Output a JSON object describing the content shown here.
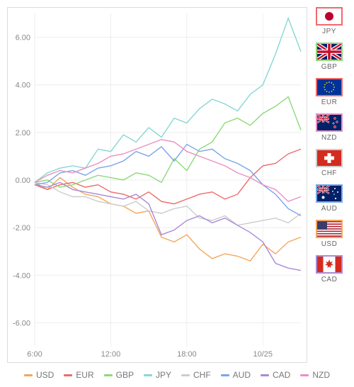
{
  "chart": {
    "type": "line",
    "background_color": "#ffffff",
    "grid_color": "#eeeeee",
    "border_color": "#dddddd",
    "axis_text_color": "#888888",
    "ylim": [
      -7,
      7
    ],
    "yticks": [
      -6,
      -4,
      -2,
      0,
      2,
      4,
      6
    ],
    "x_domain": [
      6,
      27
    ],
    "xticks": [
      {
        "value": 6,
        "label": "6:00"
      },
      {
        "value": 12,
        "label": "12:00"
      },
      {
        "value": 18,
        "label": "18:00"
      },
      {
        "value": 24,
        "label": "10/25"
      }
    ],
    "series": [
      {
        "id": "USD",
        "label": "USD",
        "color": "#f5a65b",
        "points": [
          [
            6,
            -0.1
          ],
          [
            7,
            -0.4
          ],
          [
            8,
            0.1
          ],
          [
            9,
            -0.3
          ],
          [
            10,
            -0.6
          ],
          [
            11,
            -0.7
          ],
          [
            12,
            -1.0
          ],
          [
            13,
            -1.1
          ],
          [
            14,
            -1.4
          ],
          [
            15,
            -1.3
          ],
          [
            16,
            -2.4
          ],
          [
            17,
            -2.6
          ],
          [
            18,
            -2.3
          ],
          [
            19,
            -2.9
          ],
          [
            20,
            -3.3
          ],
          [
            21,
            -3.1
          ],
          [
            22,
            -3.2
          ],
          [
            23,
            -3.4
          ],
          [
            24,
            -2.7
          ],
          [
            25,
            -3.1
          ],
          [
            26,
            -2.6
          ],
          [
            27,
            -2.4
          ]
        ]
      },
      {
        "id": "EUR",
        "label": "EUR",
        "color": "#ef6a6a",
        "points": [
          [
            6,
            -0.2
          ],
          [
            7,
            -0.4
          ],
          [
            8,
            -0.2
          ],
          [
            9,
            -0.1
          ],
          [
            10,
            -0.3
          ],
          [
            11,
            -0.2
          ],
          [
            12,
            -0.5
          ],
          [
            13,
            -0.6
          ],
          [
            14,
            -0.8
          ],
          [
            15,
            -0.5
          ],
          [
            16,
            -0.9
          ],
          [
            17,
            -1.0
          ],
          [
            18,
            -0.8
          ],
          [
            19,
            -0.6
          ],
          [
            20,
            -0.5
          ],
          [
            21,
            -0.8
          ],
          [
            22,
            -0.6
          ],
          [
            23,
            0.1
          ],
          [
            24,
            0.6
          ],
          [
            25,
            0.7
          ],
          [
            26,
            1.1
          ],
          [
            27,
            1.3
          ]
        ]
      },
      {
        "id": "GBP",
        "label": "GBP",
        "color": "#8fd97a",
        "points": [
          [
            6,
            -0.1
          ],
          [
            7,
            0.0
          ],
          [
            8,
            -0.3
          ],
          [
            9,
            -0.2
          ],
          [
            10,
            0.0
          ],
          [
            11,
            0.2
          ],
          [
            12,
            0.1
          ],
          [
            13,
            0.0
          ],
          [
            14,
            0.3
          ],
          [
            15,
            0.2
          ],
          [
            16,
            -0.1
          ],
          [
            17,
            0.9
          ],
          [
            18,
            0.4
          ],
          [
            19,
            1.3
          ],
          [
            20,
            1.6
          ],
          [
            21,
            2.4
          ],
          [
            22,
            2.6
          ],
          [
            23,
            2.3
          ],
          [
            24,
            2.8
          ],
          [
            25,
            3.1
          ],
          [
            26,
            3.5
          ],
          [
            27,
            2.1
          ]
        ]
      },
      {
        "id": "JPY",
        "label": "JPY",
        "color": "#86d8d2",
        "points": [
          [
            6,
            -0.1
          ],
          [
            7,
            0.3
          ],
          [
            8,
            0.5
          ],
          [
            9,
            0.6
          ],
          [
            10,
            0.5
          ],
          [
            11,
            1.3
          ],
          [
            12,
            1.2
          ],
          [
            13,
            1.9
          ],
          [
            14,
            1.6
          ],
          [
            15,
            2.2
          ],
          [
            16,
            1.8
          ],
          [
            17,
            2.6
          ],
          [
            18,
            2.4
          ],
          [
            19,
            3.0
          ],
          [
            20,
            3.4
          ],
          [
            21,
            3.2
          ],
          [
            22,
            2.9
          ],
          [
            23,
            3.6
          ],
          [
            24,
            4.0
          ],
          [
            25,
            5.3
          ],
          [
            26,
            6.8
          ],
          [
            27,
            5.4
          ]
        ]
      },
      {
        "id": "CHF",
        "label": "CHF",
        "color": "#cccccc",
        "points": [
          [
            6,
            -0.1
          ],
          [
            7,
            -0.2
          ],
          [
            8,
            -0.5
          ],
          [
            9,
            -0.7
          ],
          [
            10,
            -0.7
          ],
          [
            11,
            -0.9
          ],
          [
            12,
            -1.0
          ],
          [
            13,
            -1.1
          ],
          [
            14,
            -0.9
          ],
          [
            15,
            -1.3
          ],
          [
            16,
            -1.4
          ],
          [
            17,
            -1.2
          ],
          [
            18,
            -1.1
          ],
          [
            19,
            -1.6
          ],
          [
            20,
            -1.7
          ],
          [
            21,
            -1.5
          ],
          [
            22,
            -1.9
          ],
          [
            23,
            -1.8
          ],
          [
            24,
            -1.7
          ],
          [
            25,
            -1.6
          ],
          [
            26,
            -1.8
          ],
          [
            27,
            -1.4
          ]
        ]
      },
      {
        "id": "AUD",
        "label": "AUD",
        "color": "#7aa7e8",
        "points": [
          [
            6,
            -0.2
          ],
          [
            7,
            -0.1
          ],
          [
            8,
            0.3
          ],
          [
            9,
            0.4
          ],
          [
            10,
            0.2
          ],
          [
            11,
            0.5
          ],
          [
            12,
            0.6
          ],
          [
            13,
            0.8
          ],
          [
            14,
            1.2
          ],
          [
            15,
            1.0
          ],
          [
            16,
            1.4
          ],
          [
            17,
            0.8
          ],
          [
            18,
            1.5
          ],
          [
            19,
            1.2
          ],
          [
            20,
            1.3
          ],
          [
            21,
            0.9
          ],
          [
            22,
            0.7
          ],
          [
            23,
            0.4
          ],
          [
            24,
            -0.2
          ],
          [
            25,
            -0.6
          ],
          [
            26,
            -1.2
          ],
          [
            27,
            -1.5
          ]
        ]
      },
      {
        "id": "CAD",
        "label": "CAD",
        "color": "#a98bd6",
        "points": [
          [
            6,
            -0.2
          ],
          [
            7,
            -0.3
          ],
          [
            8,
            -0.1
          ],
          [
            9,
            -0.4
          ],
          [
            10,
            -0.5
          ],
          [
            11,
            -0.6
          ],
          [
            12,
            -0.7
          ],
          [
            13,
            -0.8
          ],
          [
            14,
            -0.6
          ],
          [
            15,
            -1.0
          ],
          [
            16,
            -2.3
          ],
          [
            17,
            -2.1
          ],
          [
            18,
            -1.7
          ],
          [
            19,
            -1.5
          ],
          [
            20,
            -1.8
          ],
          [
            21,
            -1.6
          ],
          [
            22,
            -1.9
          ],
          [
            23,
            -2.2
          ],
          [
            24,
            -2.6
          ],
          [
            25,
            -3.5
          ],
          [
            26,
            -3.7
          ],
          [
            27,
            -3.8
          ]
        ]
      },
      {
        "id": "NZD",
        "label": "NZD",
        "color": "#eb8fc4",
        "points": [
          [
            6,
            -0.1
          ],
          [
            7,
            0.2
          ],
          [
            8,
            0.4
          ],
          [
            9,
            0.3
          ],
          [
            10,
            0.5
          ],
          [
            11,
            0.7
          ],
          [
            12,
            1.0
          ],
          [
            13,
            1.1
          ],
          [
            14,
            1.3
          ],
          [
            15,
            1.5
          ],
          [
            16,
            1.7
          ],
          [
            17,
            1.6
          ],
          [
            18,
            1.2
          ],
          [
            19,
            1.0
          ],
          [
            20,
            0.8
          ],
          [
            21,
            0.6
          ],
          [
            22,
            0.3
          ],
          [
            23,
            0.1
          ],
          [
            24,
            -0.2
          ],
          [
            25,
            -0.4
          ],
          [
            26,
            -0.9
          ],
          [
            27,
            -0.7
          ]
        ]
      }
    ]
  },
  "legend_order": [
    "USD",
    "EUR",
    "GBP",
    "JPY",
    "CHF",
    "AUD",
    "CAD",
    "NZD"
  ],
  "side_panel": [
    {
      "code": "JPY",
      "border": "#ef6a6a",
      "flag": "jp"
    },
    {
      "code": "GBP",
      "border": "#8fd97a",
      "flag": "gb"
    },
    {
      "code": "EUR",
      "border": "#ef6a6a",
      "flag": "eu"
    },
    {
      "code": "NZD",
      "border": "#eb8fc4",
      "flag": "nz"
    },
    {
      "code": "CHF",
      "border": "#cccccc",
      "flag": "ch"
    },
    {
      "code": "AUD",
      "border": "#7aa7e8",
      "flag": "au"
    },
    {
      "code": "USD",
      "border": "#f5a65b",
      "flag": "us"
    },
    {
      "code": "CAD",
      "border": "#a98bd6",
      "flag": "ca"
    }
  ],
  "legend_text_color": "#777777",
  "side_label_color": "#666666"
}
